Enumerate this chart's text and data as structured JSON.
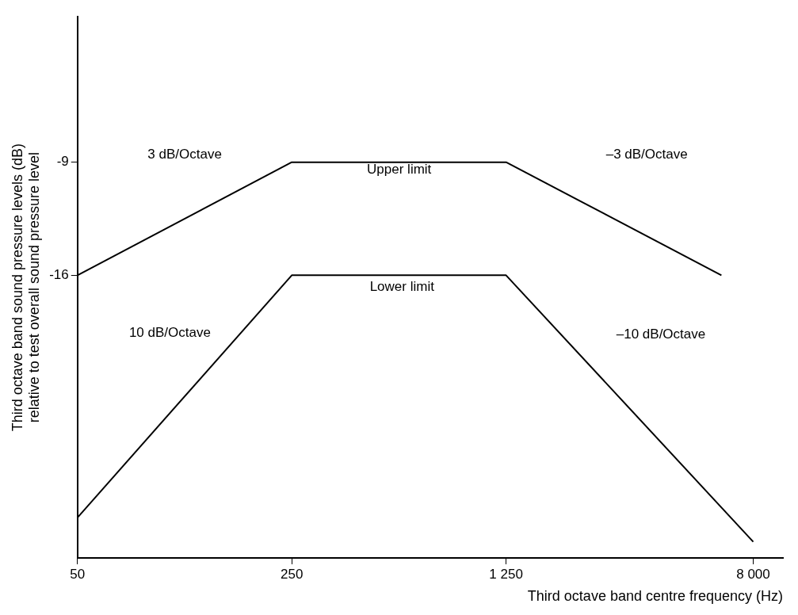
{
  "chart_data": {
    "type": "line",
    "xlabel": "Third octave band centre frequency (Hz)",
    "ylabel": "Third octave band sound pressure levels (dB) relative to test overall sound pressure level",
    "log": "x",
    "xlim": [
      50,
      10000
    ],
    "xticks": [
      50,
      250,
      {
        "value": 1250,
        "label": "1 250"
      },
      {
        "value": 8000,
        "label": "8 000"
      }
    ],
    "ylim": [
      -33.5,
      0
    ],
    "yticks": [
      -9,
      -16
    ],
    "legend": false,
    "marker": "none",
    "line_style": "solid",
    "series": [
      {
        "color": "#000000",
        "x": [
          50,
          250,
          1250,
          6300
        ],
        "values": [
          -16,
          -9,
          -9,
          -16
        ]
      },
      {
        "color": "#000000",
        "x": [
          50,
          250,
          1250,
          8000
        ],
        "values": [
          -31,
          -16,
          -16,
          -32.5
        ]
      }
    ],
    "annotations": [
      "3 dB/Octave",
      "Upper limit",
      "–3 dB/Octave",
      "Lower limit",
      "10 dB/Octave",
      "–10 dB/Octave"
    ]
  }
}
